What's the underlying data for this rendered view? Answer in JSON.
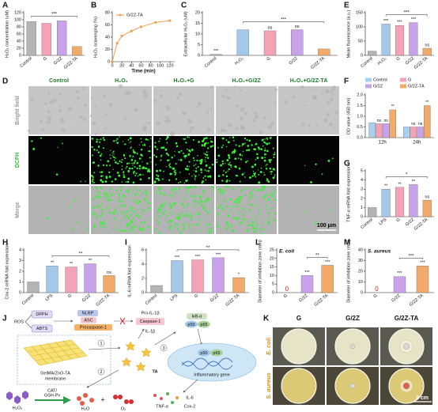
{
  "chart_data": [
    {
      "panel": "A",
      "type": "bar",
      "ylabel": "H₂O₂ concentration (uM)",
      "categories": [
        "Control",
        "G",
        "G/2Z",
        "G/2Z-TA"
      ],
      "values": [
        95,
        90,
        97,
        25
      ],
      "colors": [
        "#b4b4b4",
        "#f4a3b6",
        "#c9a3ea",
        "#f2aa6a"
      ],
      "ylim": [
        0,
        120
      ],
      "yticks": [
        0,
        20,
        40,
        60,
        80,
        100,
        120
      ],
      "bracket_from": "Control",
      "bracket_label": "***"
    },
    {
      "panel": "B",
      "type": "line",
      "xlabel": "Time (min)",
      "ylabel": "H₂O₂ scavenging (%)",
      "x": [
        0,
        10,
        20,
        40,
        60,
        90,
        120
      ],
      "series": [
        {
          "name": "G/2Z-TA",
          "color": "#f0a050",
          "values": [
            0,
            30,
            42,
            50,
            57,
            64,
            67
          ]
        }
      ],
      "xlim": [
        0,
        130
      ],
      "xticks": [
        0,
        20,
        40,
        60,
        80,
        100,
        120
      ],
      "ylim": [
        0,
        80
      ],
      "yticks": [
        0,
        20,
        40,
        60,
        80
      ]
    },
    {
      "panel": "C",
      "type": "bar",
      "ylabel": "Extracellular H₂O₂ (uM)",
      "categories": [
        "Control",
        "H₂O₂",
        "G",
        "G/2Z",
        "G/2Z-TA"
      ],
      "values": [
        0.5,
        12,
        11.5,
        12,
        3
      ],
      "colors": [
        "#b4b4b4",
        "#a3c8ea",
        "#f4a3b6",
        "#c9a3ea",
        "#f2aa6a"
      ],
      "ylim": [
        0,
        20
      ],
      "yticks": [
        0,
        5,
        10,
        15,
        20
      ],
      "annotations": [
        "***",
        null,
        "ns",
        "ns",
        null
      ],
      "bracket_from": "H₂O₂",
      "bracket_label": "***"
    },
    {
      "panel": "E",
      "type": "bar",
      "ylabel": "Mean fluorescence (a.u.)",
      "categories": [
        "Control",
        "H₂O₂",
        "G",
        "G/2Z",
        "G/2Z-TA"
      ],
      "values": [
        15,
        110,
        105,
        115,
        25
      ],
      "colors": [
        "#b4b4b4",
        "#a3c8ea",
        "#f4a3b6",
        "#c9a3ea",
        "#f2aa6a"
      ],
      "ylim": [
        0,
        150
      ],
      "yticks": [
        0,
        50,
        100,
        150
      ],
      "annotations": [
        null,
        "***",
        "***",
        "***",
        "ns"
      ],
      "bracket_from": "H₂O₂",
      "bracket_label": "***"
    },
    {
      "panel": "F",
      "type": "bar",
      "ylabel": "OD value (450 nm)",
      "categories": [
        "12h",
        "24h"
      ],
      "series": [
        {
          "name": "Control",
          "color": "#a9d0ec",
          "values": [
            0.7,
            0.5
          ],
          "annotations": [
            null,
            null
          ]
        },
        {
          "name": "G",
          "color": "#f4a3b6",
          "values": [
            0.65,
            0.5
          ],
          "annotations": [
            "ns",
            "ns"
          ]
        },
        {
          "name": "G/2Z",
          "color": "#c9a3ea",
          "values": [
            0.65,
            0.5
          ],
          "annotations": [
            "ns",
            "ns"
          ]
        },
        {
          "name": "G/2Z-TA",
          "color": "#f2aa6a",
          "values": [
            1.3,
            1.5
          ],
          "annotations": [
            "**",
            "**"
          ]
        }
      ],
      "ylim": [
        0,
        2
      ],
      "yticks": [
        {
          "value": 0,
          "label": "0.0"
        },
        0.5,
        {
          "value": 1,
          "label": "1.0"
        },
        1.5,
        {
          "value": 2,
          "label": "2.0"
        }
      ]
    },
    {
      "panel": "G",
      "type": "bar",
      "ylabel": "TNF-α mRNA fold expression",
      "categories": [
        "Control",
        "LPS",
        "G",
        "G/2Z",
        "G/2Z-TA"
      ],
      "values": [
        1,
        3,
        3.2,
        3.5,
        1.8
      ],
      "colors": [
        "#b4b4b4",
        "#a3c8ea",
        "#f4a3b6",
        "#c9a3ea",
        "#f2aa6a"
      ],
      "ylim": [
        0,
        5
      ],
      "yticks": [
        0,
        1,
        2,
        3,
        4,
        5
      ],
      "annotations": [
        null,
        "**",
        "**",
        "**",
        "ns"
      ],
      "bracket_from": "LPS",
      "bracket_label": "*"
    },
    {
      "panel": "H",
      "type": "bar",
      "ylabel": "Cox-2 mRNA fold expression",
      "categories": [
        "Control",
        "LPS",
        "G",
        "G/2Z",
        "G/2Z-TA"
      ],
      "values": [
        1,
        2.5,
        2.4,
        2.7,
        1.6
      ],
      "colors": [
        "#b4b4b4",
        "#a3c8ea",
        "#f4a3b6",
        "#c9a3ea",
        "#f2aa6a"
      ],
      "ylim": [
        0,
        4
      ],
      "yticks": [
        0,
        1,
        2,
        3,
        4
      ],
      "annotations": [
        null,
        "**",
        "**",
        "**",
        "ns"
      ],
      "bracket_from": "LPS",
      "bracket_label": "**"
    },
    {
      "panel": "I",
      "type": "bar",
      "ylabel": "IL-6 mRNA fold expression",
      "categories": [
        "Control",
        "LPS",
        "G",
        "G/2Z",
        "G/2Z-TA"
      ],
      "values": [
        1,
        4.5,
        4.6,
        4.9,
        2.1
      ],
      "colors": [
        "#b4b4b4",
        "#a3c8ea",
        "#f4a3b6",
        "#c9a3ea",
        "#f2aa6a"
      ],
      "ylim": [
        0,
        6
      ],
      "yticks": [
        0,
        2,
        4,
        6
      ],
      "annotations": [
        null,
        "***",
        "***",
        "***",
        "*"
      ],
      "bracket_from": "LPS",
      "bracket_label": "**"
    },
    {
      "panel": "L",
      "type": "bar",
      "inner_label": "E. coli",
      "ylabel": "Diameter of inhibition zone (mm)",
      "categories": [
        "G",
        "G/2Z",
        "G/2Z-TA"
      ],
      "values": [
        0,
        10,
        16
      ],
      "colors": [
        "#f4a3b6",
        "#c9a3ea",
        "#f2aa6a"
      ],
      "ylim": [
        0,
        25
      ],
      "yticks": [
        0,
        5,
        10,
        15,
        20,
        25
      ],
      "annotations": [
        "0",
        "***",
        "***"
      ],
      "bracket_from": "G/2Z",
      "bracket_label": "**"
    },
    {
      "panel": "M",
      "type": "bar",
      "inner_label": "S. aureus",
      "ylabel": "Diameter of inhibition zone (mm)",
      "categories": [
        "G",
        "G/2Z",
        "G/2Z-TA"
      ],
      "values": [
        0,
        15,
        25
      ],
      "colors": [
        "#f4a3b6",
        "#c9a3ea",
        "#f2aa6a"
      ],
      "ylim": [
        0,
        40
      ],
      "yticks": [
        0,
        10,
        20,
        30,
        40
      ],
      "annotations": [
        "0",
        "***",
        "***"
      ],
      "bracket_from": "G/2Z",
      "bracket_label": "***"
    }
  ],
  "panel_d": {
    "letter": "D",
    "columns": [
      "Control",
      "H₂O₂",
      "H₂O₂+G",
      "H₂O₂+G/2Z",
      "H₂O₂+G/2Z-TA"
    ],
    "rows": [
      "Bright field",
      "DCFH",
      "Merge"
    ],
    "scale_bar": "100 μm"
  },
  "panel_j": {
    "letter": "J",
    "labels": {
      "dpph": "DPPH",
      "ros": "ROS",
      "abts": "ABTS",
      "nlrp": "NLRP",
      "asc": "ASC",
      "procaspase": "Procaspase-1",
      "pro_il": "Pro-IL-1β",
      "caspase": "Caspase-1",
      "il1b": "IL-1β",
      "membrane_1": "GelMA/ZnO-TA",
      "membrane_2": "membrane",
      "ta": "TA",
      "step_1": "1",
      "step_2": "2",
      "step_3": "3",
      "ikb": "IκB-α",
      "p50": "p50",
      "p65": "p65",
      "p50_n": "p50",
      "p65_n": "p65",
      "gene": "Inflammatory gene",
      "cat": "CAT/",
      "gsh": "GSH-Px",
      "h2o2": "H₂O₂",
      "h2o": "H₂O",
      "plus": "+",
      "o2": "O₂",
      "tnf": "TNF-α",
      "il6": "IL-6",
      "cox": "Cox-2"
    }
  },
  "panel_k": {
    "letter": "K",
    "columns": [
      "G",
      "G/2Z",
      "G/2Z-TA"
    ],
    "rows": [
      "E. coli",
      "S. aureus"
    ],
    "scale_bar": "2 cm"
  }
}
